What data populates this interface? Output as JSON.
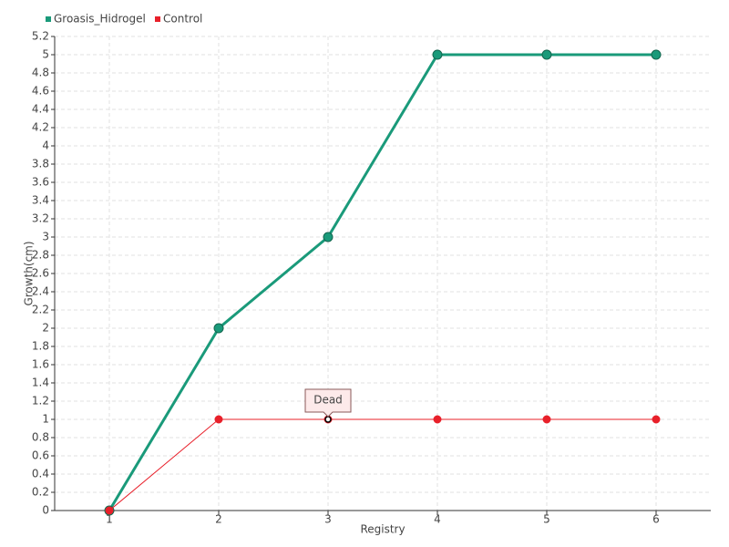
{
  "chart_data": {
    "type": "line",
    "x_label": "Registry",
    "y_label": "Growth(cm)",
    "categories": [
      "1",
      "2",
      "3",
      "4",
      "5",
      "6"
    ],
    "series": [
      {
        "name": "Groasis_Hidrogel",
        "color": "#1a9a7a",
        "values": [
          0,
          2,
          3,
          5,
          5,
          5
        ]
      },
      {
        "name": "Control",
        "color": "#e8202a",
        "values": [
          0,
          1,
          1,
          1,
          1,
          1
        ]
      }
    ],
    "annotations": [
      {
        "text": "Dead",
        "series": "Control",
        "x": "3"
      }
    ],
    "ylim": [
      0,
      5.2
    ],
    "yticks": [
      0,
      0.2,
      0.4,
      0.6,
      0.8,
      1,
      1.2,
      1.4,
      1.6,
      1.8,
      2,
      2.2,
      2.4,
      2.6,
      2.8,
      3,
      3.2,
      3.4,
      3.6,
      3.8,
      4,
      4.2,
      4.4,
      4.6,
      4.8,
      5,
      5.2
    ],
    "grid": true,
    "legend": "top-left"
  }
}
